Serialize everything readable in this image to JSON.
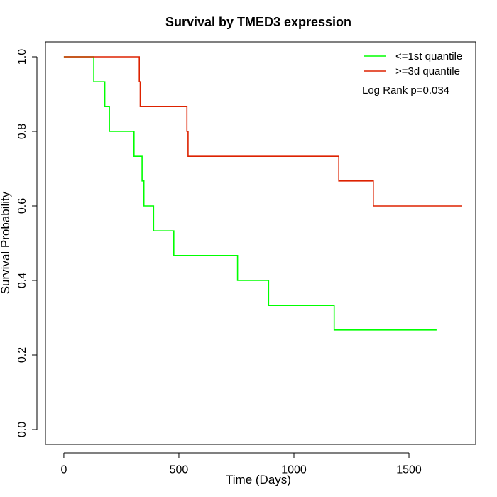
{
  "chart_data": {
    "type": "line",
    "title": "Survival by TMED3 expression",
    "xlabel": "Time (Days)",
    "ylabel": "Survival Probability",
    "xlim": [
      -80,
      1790
    ],
    "ylim": [
      -0.04,
      1.04
    ],
    "x_ticks": [
      0,
      500,
      1000,
      1500
    ],
    "y_ticks": [
      0.0,
      0.2,
      0.4,
      0.6,
      0.8,
      1.0
    ],
    "x_tick_labels": [
      "0",
      "500",
      "1000",
      "1500"
    ],
    "y_tick_labels": [
      "0.0",
      "0.2",
      "0.4",
      "0.6",
      "0.8",
      "1.0"
    ],
    "grid": false,
    "legend_position": "top-right",
    "annotation": "Log Rank p=0.034",
    "series": [
      {
        "name": "<=1st quantile",
        "color": "#00ff00",
        "step": true,
        "x": [
          0,
          130,
          178,
          198,
          305,
          340,
          348,
          390,
          478,
          755,
          890,
          1175,
          1620
        ],
        "y": [
          1.0,
          0.933,
          0.867,
          0.8,
          0.733,
          0.667,
          0.6,
          0.533,
          0.467,
          0.4,
          0.333,
          0.267,
          0.267
        ]
      },
      {
        "name": ">=3d quantile",
        "color": "#dd2200",
        "step": true,
        "x": [
          0,
          328,
          332,
          535,
          540,
          1195,
          1345,
          1730
        ],
        "y": [
          1.0,
          0.933,
          0.867,
          0.8,
          0.733,
          0.667,
          0.6,
          0.6
        ]
      }
    ]
  }
}
